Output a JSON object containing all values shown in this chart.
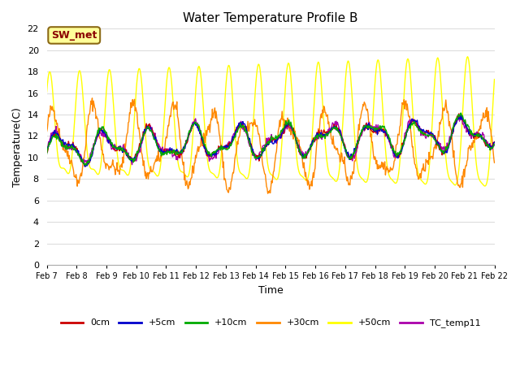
{
  "title": "Water Temperature Profile B",
  "xlabel": "Time",
  "ylabel": "Temperature(C)",
  "ylim": [
    0,
    22
  ],
  "yticks": [
    0,
    2,
    4,
    6,
    8,
    10,
    12,
    14,
    16,
    18,
    20,
    22
  ],
  "annotation": "SW_met",
  "annotation_color": "#8B0000",
  "annotation_bg": "#FFFF99",
  "plot_bg": "#FFFFFF",
  "fig_bg": "#FFFFFF",
  "grid_color": "#DDDDDD",
  "series_colors": {
    "0cm": "#CC0000",
    "+5cm": "#0000CC",
    "+10cm": "#00AA00",
    "+30cm": "#FF8800",
    "+50cm": "#FFFF00",
    "TC_temp11": "#AA00AA"
  },
  "xtick_labels": [
    "Feb 7",
    "Feb 8",
    "Feb 9",
    "Feb 10",
    "Feb 11",
    "Feb 12",
    "Feb 13",
    "Feb 14",
    "Feb 15",
    "Feb 16",
    "Feb 17",
    "Feb 18",
    "Feb 19",
    "Feb 20",
    "Feb 21",
    "Feb 22"
  ],
  "linewidth": 1.0,
  "title_fontsize": 11,
  "label_fontsize": 9,
  "tick_fontsize": 8
}
